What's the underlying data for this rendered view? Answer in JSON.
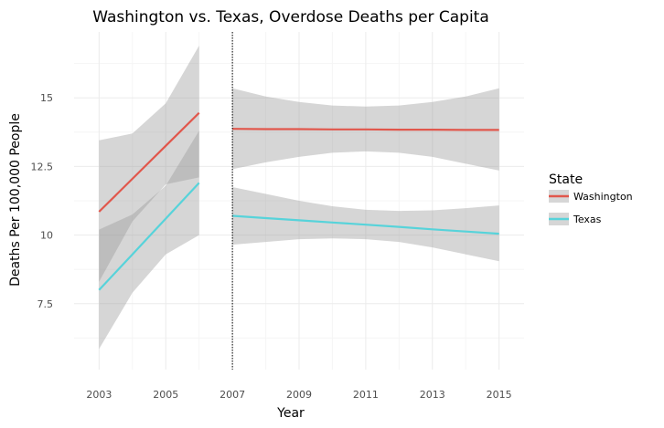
{
  "chart_data": {
    "type": "line",
    "title": "Washington vs. Texas, Overdose Deaths per Capita",
    "xlabel": "Year",
    "ylabel": "Deaths Per 100,000 People",
    "xlim": [
      2002.25,
      2015.75
    ],
    "ylim": [
      5.1,
      17.4
    ],
    "x_ticks": [
      2003,
      2005,
      2007,
      2009,
      2011,
      2013,
      2015
    ],
    "y_ticks": [
      7.5,
      10,
      12.5,
      15
    ],
    "y_tick_labels": [
      "7.5",
      "10",
      "12.5",
      "15"
    ],
    "grid": true,
    "policy_line_x": 2007,
    "legend": {
      "title": "State",
      "position": "right",
      "entries": [
        "Washington",
        "Texas"
      ]
    },
    "colors": {
      "Washington": "#e1574c",
      "Texas": "#57d3da",
      "band": "#999999",
      "grid_major": "#ebebeb",
      "grid_minor": "#f5f5f5"
    },
    "series": [
      {
        "name": "Washington",
        "segments": [
          {
            "x": [
              2003,
              2004,
              2005,
              2006
            ],
            "fit": [
              10.85,
              12.05,
              13.25,
              14.45
            ],
            "lower": [
              8.3,
              10.5,
              11.85,
              12.1
            ],
            "upper": [
              13.45,
              13.7,
              14.8,
              16.9
            ]
          },
          {
            "x": [
              2007,
              2008,
              2009,
              2010,
              2011,
              2012,
              2013,
              2014,
              2015
            ],
            "fit": [
              13.87,
              13.86,
              13.86,
              13.85,
              13.85,
              13.84,
              13.84,
              13.83,
              13.83
            ],
            "lower": [
              12.4,
              12.65,
              12.85,
              13.0,
              13.05,
              13.0,
              12.85,
              12.6,
              12.35
            ],
            "upper": [
              15.35,
              15.05,
              14.85,
              14.72,
              14.68,
              14.72,
              14.85,
              15.05,
              15.35
            ]
          }
        ]
      },
      {
        "name": "Texas",
        "segments": [
          {
            "x": [
              2003,
              2004,
              2005,
              2006
            ],
            "fit": [
              8.0,
              9.3,
              10.6,
              11.9
            ],
            "lower": [
              5.85,
              7.9,
              9.3,
              10.0
            ],
            "upper": [
              10.2,
              10.75,
              11.8,
              13.8
            ]
          },
          {
            "x": [
              2007,
              2008,
              2009,
              2010,
              2011,
              2012,
              2013,
              2014,
              2015
            ],
            "fit": [
              10.7,
              10.62,
              10.54,
              10.46,
              10.38,
              10.3,
              10.21,
              10.13,
              10.05
            ],
            "lower": [
              9.65,
              9.75,
              9.85,
              9.88,
              9.85,
              9.75,
              9.55,
              9.3,
              9.05
            ],
            "upper": [
              11.75,
              11.5,
              11.25,
              11.05,
              10.92,
              10.88,
              10.9,
              10.98,
              11.08
            ]
          }
        ]
      }
    ]
  }
}
